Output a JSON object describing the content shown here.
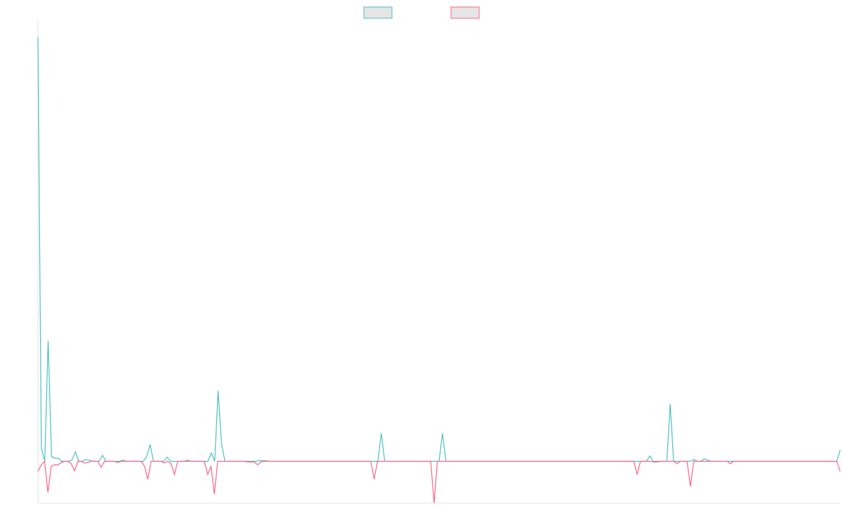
{
  "chart_data": {
    "type": "line",
    "title": "",
    "xlabel": "",
    "ylabel": "",
    "grid": false,
    "legend_position": "top-center",
    "ylim": [
      -70,
      730
    ],
    "series": [
      {
        "name": "",
        "color": "#4bc0c0",
        "fill": "#e5e5e5",
        "values": [
          710,
          22,
          0,
          202,
          8,
          5,
          5,
          0,
          0,
          0,
          2,
          16,
          0,
          0,
          3,
          2,
          0,
          0,
          0,
          10,
          0,
          0,
          0,
          0,
          0,
          2,
          0,
          0,
          0,
          0,
          0,
          0,
          8,
          28,
          0,
          0,
          0,
          0,
          7,
          0,
          0,
          0,
          0,
          0,
          2,
          0,
          0,
          0,
          0,
          0,
          0,
          14,
          0,
          118,
          30,
          0,
          0,
          0,
          0,
          0,
          0,
          0,
          0,
          0,
          0,
          1,
          1,
          1,
          0,
          0,
          0,
          0,
          0,
          0,
          0,
          0,
          0,
          0,
          0,
          0,
          0,
          0,
          0,
          0,
          0,
          0,
          0,
          0,
          0,
          0,
          0,
          0,
          0,
          0,
          0,
          0,
          0,
          0,
          0,
          0,
          0,
          47,
          0,
          0,
          0,
          0,
          0,
          0,
          0,
          0,
          0,
          0,
          0,
          0,
          0,
          0,
          0,
          0,
          0,
          47,
          0,
          0,
          0,
          0,
          0,
          0,
          0,
          0,
          0,
          0,
          0,
          0,
          0,
          0,
          0,
          0,
          0,
          0,
          0,
          0,
          0,
          0,
          0,
          0,
          0,
          0,
          0,
          0,
          0,
          0,
          0,
          0,
          0,
          0,
          0,
          0,
          0,
          0,
          0,
          0,
          0,
          0,
          0,
          0,
          0,
          0,
          0,
          0,
          0,
          0,
          0,
          0,
          0,
          0,
          0,
          0,
          0,
          0,
          0,
          0,
          9,
          0,
          0,
          0,
          0,
          0,
          96,
          0,
          0,
          0,
          0,
          0,
          0,
          3,
          0,
          0,
          4,
          2,
          0,
          0,
          0,
          0,
          0,
          0,
          0,
          0,
          0,
          0,
          0,
          0,
          0,
          0,
          0,
          0,
          0,
          0,
          0,
          0,
          0,
          0,
          0,
          0,
          0,
          0,
          0,
          0,
          0,
          0,
          0,
          0,
          0,
          0,
          0,
          0,
          0,
          0,
          19
        ]
      },
      {
        "name": "",
        "color": "#ff6384",
        "fill": "#e5e5e5",
        "values": [
          -17,
          -6,
          0,
          -52,
          -8,
          -6,
          -6,
          -2,
          0,
          0,
          -4,
          -16,
          0,
          0,
          -3,
          -2,
          0,
          0,
          0,
          -10,
          0,
          0,
          0,
          0,
          -2,
          0,
          0,
          0,
          0,
          0,
          0,
          0,
          -8,
          -30,
          0,
          0,
          0,
          0,
          -3,
          0,
          -4,
          -22,
          0,
          0,
          0,
          0,
          0,
          0,
          0,
          0,
          0,
          -22,
          -8,
          -55,
          0,
          0,
          0,
          0,
          0,
          0,
          0,
          0,
          0,
          -1,
          -1,
          -1,
          -6,
          -1,
          0,
          0,
          0,
          0,
          0,
          0,
          0,
          0,
          0,
          0,
          0,
          0,
          0,
          0,
          0,
          0,
          0,
          0,
          0,
          0,
          0,
          0,
          0,
          0,
          0,
          0,
          0,
          0,
          0,
          0,
          0,
          0,
          0,
          -30,
          0,
          0,
          0,
          0,
          0,
          0,
          0,
          0,
          0,
          0,
          0,
          0,
          0,
          0,
          0,
          0,
          0,
          -70,
          0,
          0,
          0,
          0,
          0,
          0,
          0,
          0,
          0,
          0,
          0,
          0,
          0,
          0,
          0,
          0,
          0,
          0,
          0,
          0,
          0,
          0,
          0,
          0,
          0,
          0,
          0,
          0,
          0,
          0,
          0,
          0,
          0,
          0,
          0,
          0,
          0,
          0,
          0,
          0,
          0,
          0,
          0,
          0,
          0,
          0,
          0,
          0,
          0,
          0,
          0,
          0,
          0,
          0,
          0,
          0,
          0,
          0,
          0,
          0,
          -22,
          0,
          0,
          0,
          0,
          -1,
          -1,
          0,
          0,
          0,
          0,
          0,
          -4,
          0,
          0,
          0,
          -42,
          0,
          0,
          0,
          0,
          0,
          0,
          0,
          0,
          0,
          0,
          0,
          -4,
          0,
          0,
          0,
          0,
          0,
          0,
          0,
          0,
          0,
          0,
          0,
          0,
          0,
          0,
          0,
          0,
          0,
          0,
          0,
          0,
          0,
          0,
          0,
          0,
          0,
          0,
          0,
          0,
          0,
          0,
          0,
          0,
          -17
        ]
      }
    ]
  }
}
